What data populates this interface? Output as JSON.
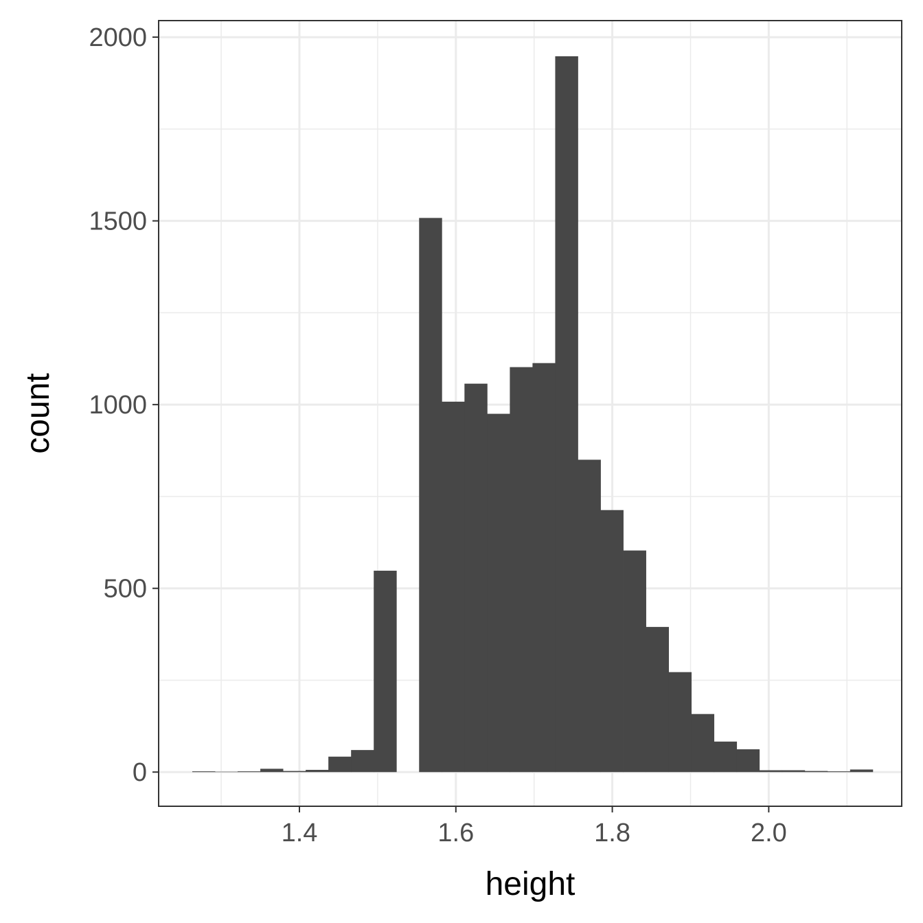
{
  "chart_data": {
    "type": "bar",
    "subtype": "histogram",
    "xlabel": "height",
    "ylabel": "count",
    "xlim": [
      1.22,
      2.17
    ],
    "ylim": [
      -93,
      2045
    ],
    "x_ticks": [
      1.4,
      1.6,
      1.8,
      2.0
    ],
    "x_tick_labels": [
      "1.4",
      "1.6",
      "1.8",
      "2.0"
    ],
    "x_minor_ticks": [
      1.3,
      1.5,
      1.7,
      1.9,
      2.1
    ],
    "y_ticks": [
      0,
      500,
      1000,
      1500,
      2000
    ],
    "y_tick_labels": [
      "0",
      "500",
      "1000",
      "1500",
      "2000"
    ],
    "y_minor_ticks": [
      250,
      750,
      1250,
      1750
    ],
    "grid": true,
    "bar_color": "#474747",
    "bins": [
      {
        "x0": 1.263,
        "x1": 1.292,
        "count": 2
      },
      {
        "x0": 1.292,
        "x1": 1.321,
        "count": 1
      },
      {
        "x0": 1.321,
        "x1": 1.35,
        "count": 2
      },
      {
        "x0": 1.35,
        "x1": 1.379,
        "count": 9
      },
      {
        "x0": 1.379,
        "x1": 1.408,
        "count": 3
      },
      {
        "x0": 1.408,
        "x1": 1.437,
        "count": 6
      },
      {
        "x0": 1.437,
        "x1": 1.466,
        "count": 42
      },
      {
        "x0": 1.466,
        "x1": 1.495,
        "count": 60
      },
      {
        "x0": 1.495,
        "x1": 1.524,
        "count": 548
      },
      {
        "x0": 1.524,
        "x1": 1.553,
        "count": 0
      },
      {
        "x0": 1.553,
        "x1": 1.582,
        "count": 1508
      },
      {
        "x0": 1.582,
        "x1": 1.611,
        "count": 1008
      },
      {
        "x0": 1.611,
        "x1": 1.64,
        "count": 1057
      },
      {
        "x0": 1.64,
        "x1": 1.669,
        "count": 975
      },
      {
        "x0": 1.669,
        "x1": 1.698,
        "count": 1102
      },
      {
        "x0": 1.698,
        "x1": 1.727,
        "count": 1113
      },
      {
        "x0": 1.727,
        "x1": 1.756,
        "count": 1948
      },
      {
        "x0": 1.756,
        "x1": 1.785,
        "count": 850
      },
      {
        "x0": 1.785,
        "x1": 1.814,
        "count": 713
      },
      {
        "x0": 1.814,
        "x1": 1.843,
        "count": 603
      },
      {
        "x0": 1.843,
        "x1": 1.872,
        "count": 395
      },
      {
        "x0": 1.872,
        "x1": 1.901,
        "count": 272
      },
      {
        "x0": 1.901,
        "x1": 1.93,
        "count": 158
      },
      {
        "x0": 1.93,
        "x1": 1.959,
        "count": 83
      },
      {
        "x0": 1.959,
        "x1": 1.988,
        "count": 62
      },
      {
        "x0": 1.988,
        "x1": 2.017,
        "count": 5
      },
      {
        "x0": 2.017,
        "x1": 2.046,
        "count": 5
      },
      {
        "x0": 2.046,
        "x1": 2.075,
        "count": 3
      },
      {
        "x0": 2.075,
        "x1": 2.104,
        "count": 2
      },
      {
        "x0": 2.104,
        "x1": 2.133,
        "count": 7
      }
    ]
  }
}
